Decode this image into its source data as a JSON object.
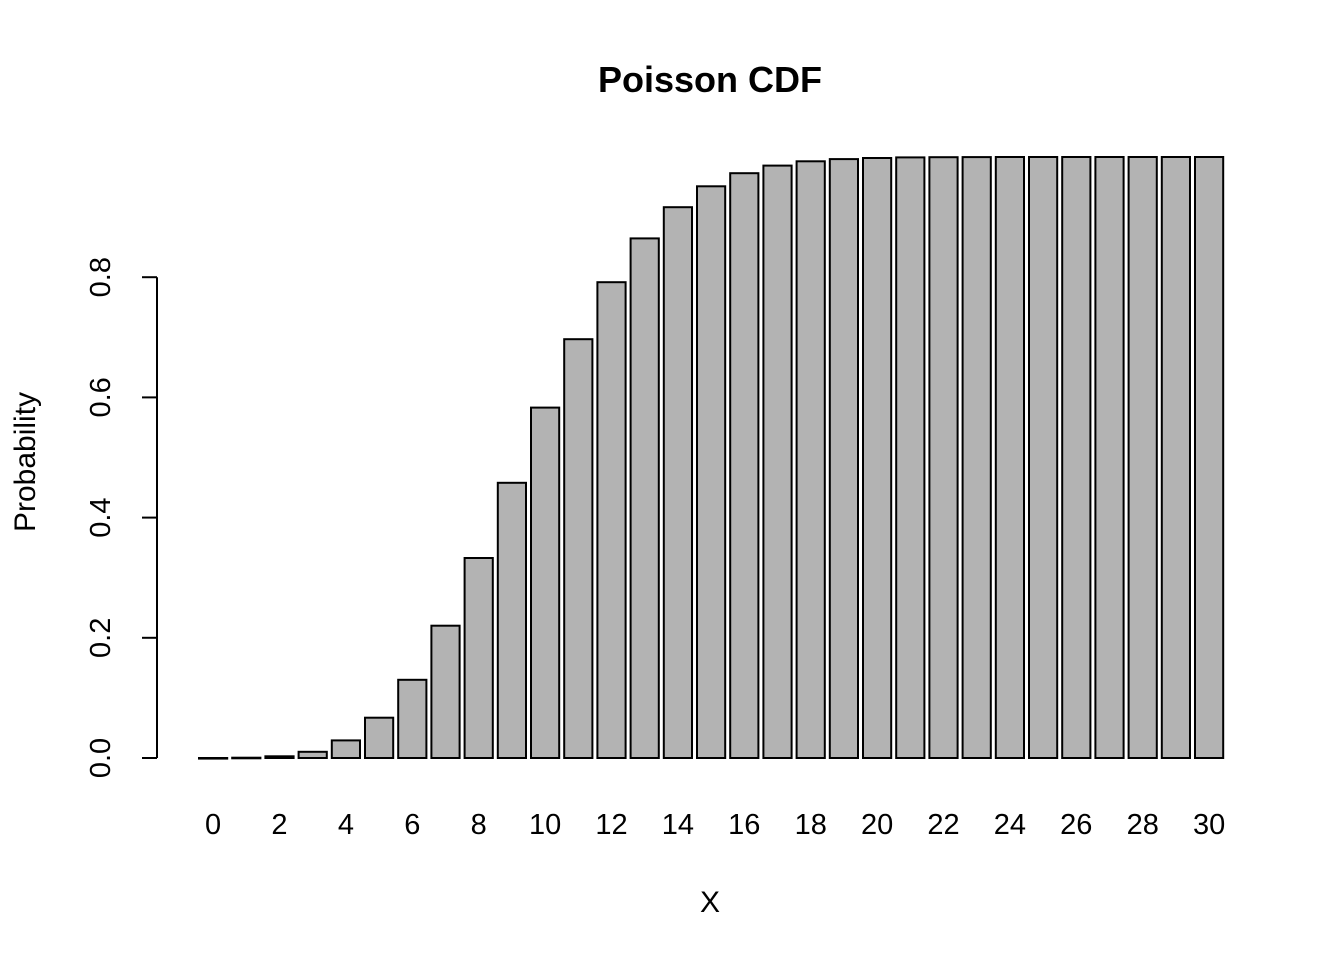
{
  "chart_data": {
    "type": "bar",
    "title": "Poisson CDF",
    "xlabel": "X",
    "ylabel": "Probability",
    "categories": [
      "0",
      "1",
      "2",
      "3",
      "4",
      "5",
      "6",
      "7",
      "8",
      "9",
      "10",
      "11",
      "12",
      "13",
      "14",
      "15",
      "16",
      "17",
      "18",
      "19",
      "20",
      "21",
      "22",
      "23",
      "24",
      "25",
      "26",
      "27",
      "28",
      "29",
      "30"
    ],
    "x_tick_labels": [
      "0",
      "",
      "2",
      "",
      "4",
      "",
      "6",
      "",
      "8",
      "",
      "10",
      "",
      "12",
      "",
      "14",
      "",
      "16",
      "",
      "18",
      "",
      "20",
      "",
      "22",
      "",
      "24",
      "",
      "26",
      "",
      "28",
      "",
      "30"
    ],
    "values": [
      0.0,
      0.0005,
      0.0028,
      0.0103,
      0.0293,
      0.0671,
      0.1301,
      0.2202,
      0.3328,
      0.4579,
      0.583,
      0.6968,
      0.7916,
      0.8645,
      0.9165,
      0.9513,
      0.973,
      0.9857,
      0.9928,
      0.9965,
      0.9984,
      0.9993,
      0.9997,
      0.9999,
      1.0,
      1.0,
      1.0,
      1.0,
      1.0,
      1.0,
      1.0
    ],
    "y_ticks": [
      0.0,
      0.2,
      0.4,
      0.6,
      0.8
    ],
    "y_tick_labels": [
      "0.0",
      "0.2",
      "0.4",
      "0.6",
      "0.8"
    ],
    "ylim": [
      0,
      1
    ],
    "grid": false,
    "legend": "none",
    "colors": {
      "bar_fill": "#b3b3b3",
      "bar_stroke": "#000000",
      "axis": "#000000"
    }
  }
}
